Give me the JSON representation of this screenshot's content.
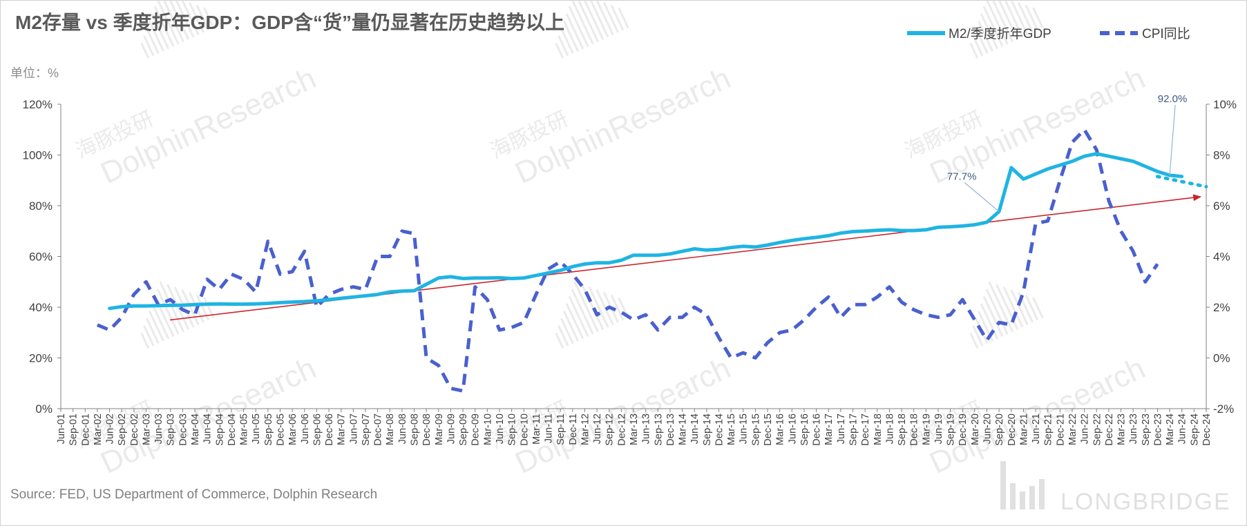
{
  "chart_data": {
    "type": "line",
    "title": "M2存量 vs 季度折年GDP：GDP含“货”量仍显著在历史趋势以上",
    "unit_label": "单位：%",
    "source": "Source: FED, US Department of Commerce, Dolphin Research",
    "watermark_cn": "海豚投研",
    "watermark_en": "DolphinResearch",
    "logo_text": "LONGBRIDGE",
    "x_categories": [
      "Jun-01",
      "Sep-01",
      "Dec-01",
      "Mar-02",
      "Jun-02",
      "Sep-02",
      "Dec-02",
      "Mar-03",
      "Jun-03",
      "Sep-03",
      "Dec-03",
      "Mar-04",
      "Jun-04",
      "Sep-04",
      "Dec-04",
      "Mar-05",
      "Jun-05",
      "Sep-05",
      "Dec-05",
      "Mar-06",
      "Jun-06",
      "Sep-06",
      "Dec-06",
      "Mar-07",
      "Jun-07",
      "Sep-07",
      "Dec-07",
      "Mar-08",
      "Jun-08",
      "Sep-08",
      "Dec-08",
      "Mar-09",
      "Jun-09",
      "Sep-09",
      "Dec-09",
      "Mar-10",
      "Jun-10",
      "Sep-10",
      "Dec-10",
      "Mar-11",
      "Jun-11",
      "Sep-11",
      "Dec-11",
      "Mar-12",
      "Jun-12",
      "Sep-12",
      "Dec-12",
      "Mar-13",
      "Jun-13",
      "Sep-13",
      "Dec-13",
      "Mar-14",
      "Jun-14",
      "Sep-14",
      "Dec-14",
      "Mar-15",
      "Jun-15",
      "Sep-15",
      "Dec-15",
      "Mar-16",
      "Jun-16",
      "Sep-16",
      "Dec-16",
      "Mar-17",
      "Jun-17",
      "Sep-17",
      "Dec-17",
      "Mar-18",
      "Jun-18",
      "Sep-18",
      "Dec-18",
      "Mar-19",
      "Jun-19",
      "Sep-19",
      "Dec-19",
      "Mar-20",
      "Jun-20",
      "Sep-20",
      "Dec-20",
      "Mar-21",
      "Jun-21",
      "Sep-21",
      "Dec-21",
      "Mar-22",
      "Jun-22",
      "Sep-22",
      "Dec-22",
      "Mar-23",
      "Jun-23",
      "Sep-23",
      "Dec-23",
      "Mar-24",
      "Jun-24",
      "Sep-24",
      "Dec-24"
    ],
    "y_left": {
      "min": 0,
      "max": 120,
      "step": 20,
      "ticks": [
        "0%",
        "20%",
        "40%",
        "60%",
        "80%",
        "100%",
        "120%"
      ]
    },
    "y_right": {
      "min": -2,
      "max": 10,
      "step": 2,
      "ticks": [
        "-2%",
        "0%",
        "2%",
        "4%",
        "6%",
        "8%",
        "10%"
      ]
    },
    "legend_position": "top-right",
    "series": [
      {
        "name": "M2/季度折年GDP",
        "axis": "left",
        "style": "solid",
        "color": "#1fb4e3",
        "start_index": 4,
        "values": [
          39.5,
          40.2,
          40.5,
          40.5,
          40.6,
          40.7,
          40.8,
          41.0,
          41.2,
          41.3,
          41.2,
          41.2,
          41.3,
          41.5,
          41.8,
          42.0,
          42.2,
          42.5,
          43.0,
          43.5,
          44.0,
          44.5,
          45.0,
          46.0,
          46.3,
          46.5,
          49.0,
          51.5,
          52.0,
          51.3,
          51.5,
          51.5,
          51.6,
          51.3,
          51.5,
          52.5,
          53.5,
          54.5,
          56.0,
          57.0,
          57.5,
          57.5,
          58.5,
          60.5,
          60.5,
          60.5,
          61.0,
          62.0,
          63.0,
          62.5,
          62.8,
          63.5,
          64.0,
          63.7,
          64.5,
          65.5,
          66.3,
          67.0,
          67.5,
          68.2,
          69.2,
          69.8,
          70.0,
          70.3,
          70.5,
          70.2,
          70.2,
          70.5,
          71.5,
          71.7,
          72.0,
          72.5,
          73.5,
          77.7,
          95.0,
          90.5,
          92.5,
          94.5,
          96.0,
          97.5,
          99.5,
          100.5,
          99.5,
          98.5,
          97.5,
          95.5,
          93.5,
          92.0,
          91.5
        ]
      },
      {
        "name": "M2/季度折年GDP",
        "axis": "left",
        "style": "dotted",
        "color": "#1fb4e3",
        "start_index": 90,
        "values": [
          91.5,
          90.5,
          89.5,
          88.5,
          87.5
        ]
      },
      {
        "name": "CPI同比",
        "axis": "right",
        "style": "dashed",
        "color": "#4a60cf",
        "start_index": 3,
        "values": [
          1.3,
          1.1,
          1.6,
          2.5,
          3.0,
          2.1,
          2.3,
          1.9,
          1.7,
          3.1,
          2.7,
          3.3,
          3.1,
          2.6,
          4.6,
          3.3,
          3.4,
          4.2,
          2.0,
          2.5,
          2.7,
          2.8,
          2.7,
          4.0,
          4.0,
          5.0,
          4.9,
          0.0,
          -0.3,
          -1.2,
          -1.3,
          2.8,
          2.3,
          1.1,
          1.2,
          1.4,
          2.5,
          3.5,
          3.8,
          3.3,
          2.7,
          1.7,
          2.0,
          1.8,
          1.5,
          1.7,
          1.1,
          1.6,
          1.6,
          2.0,
          1.7,
          0.8,
          0.0,
          0.2,
          0.0,
          0.6,
          1.0,
          1.1,
          1.5,
          2.0,
          2.4,
          1.6,
          2.1,
          2.1,
          2.4,
          2.8,
          2.2,
          1.9,
          1.7,
          1.6,
          1.7,
          2.3,
          1.5,
          0.7,
          1.4,
          1.3,
          2.6,
          5.3,
          5.4,
          7.0,
          8.5,
          9.0,
          8.2,
          6.2,
          5.0,
          4.2,
          3.0,
          3.7
        ]
      },
      {
        "name": "trend",
        "axis": "left",
        "style": "solid",
        "color": "#c9252c",
        "arrow": true,
        "points": [
          [
            9,
            35
          ],
          [
            93.5,
            83.5
          ]
        ]
      }
    ],
    "annotations": [
      {
        "text": "77.7%",
        "series": 0,
        "x_index": 77,
        "value": 77.7
      },
      {
        "text": "92.0%",
        "series": 0,
        "x_index": 91,
        "value": 92.0
      }
    ]
  }
}
